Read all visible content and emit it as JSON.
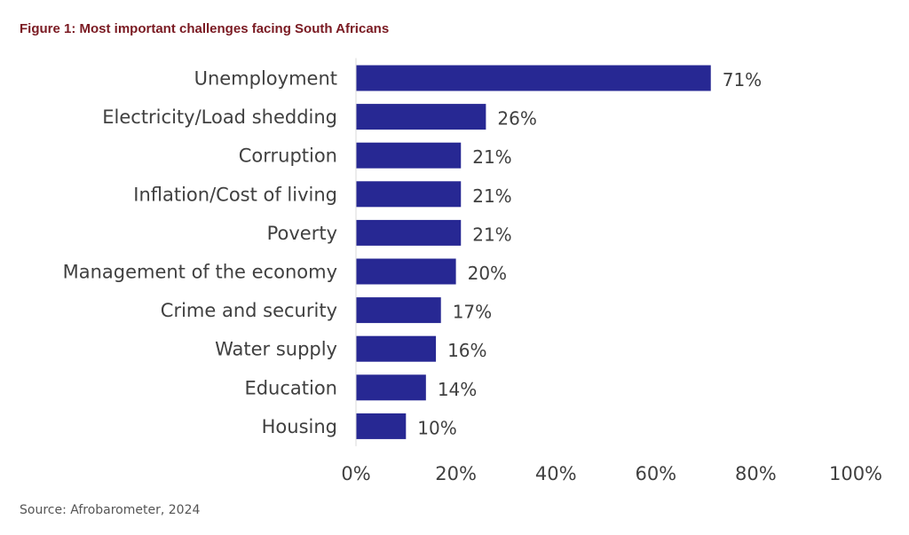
{
  "figure_title": "Figure 1: Most important challenges facing South Africans",
  "source": "Source: Afrobarometer, 2024",
  "colors": {
    "title": "#7a1a22",
    "bar": "#272893",
    "axis_line": "#d9d9d9",
    "label_text": "#404040",
    "source_text": "#555555"
  },
  "chart_data": {
    "type": "bar",
    "orientation": "horizontal",
    "categories": [
      "Unemployment",
      "Electricity/Load shedding",
      "Corruption",
      "Inflation/Cost of living",
      "Poverty",
      "Management of the economy",
      "Crime and security",
      "Water supply",
      "Education",
      "Housing"
    ],
    "values": [
      71,
      26,
      21,
      21,
      21,
      20,
      17,
      16,
      14,
      10
    ],
    "data_labels": [
      "71%",
      "26%",
      "21%",
      "21%",
      "21%",
      "20%",
      "17%",
      "16%",
      "14%",
      "10%"
    ],
    "xlim": [
      0,
      100
    ],
    "x_ticks": [
      0,
      20,
      40,
      60,
      80,
      100
    ],
    "x_tick_labels": [
      "0%",
      "20%",
      "40%",
      "60%",
      "80%",
      "100%"
    ],
    "grid": false,
    "legend": "none"
  }
}
